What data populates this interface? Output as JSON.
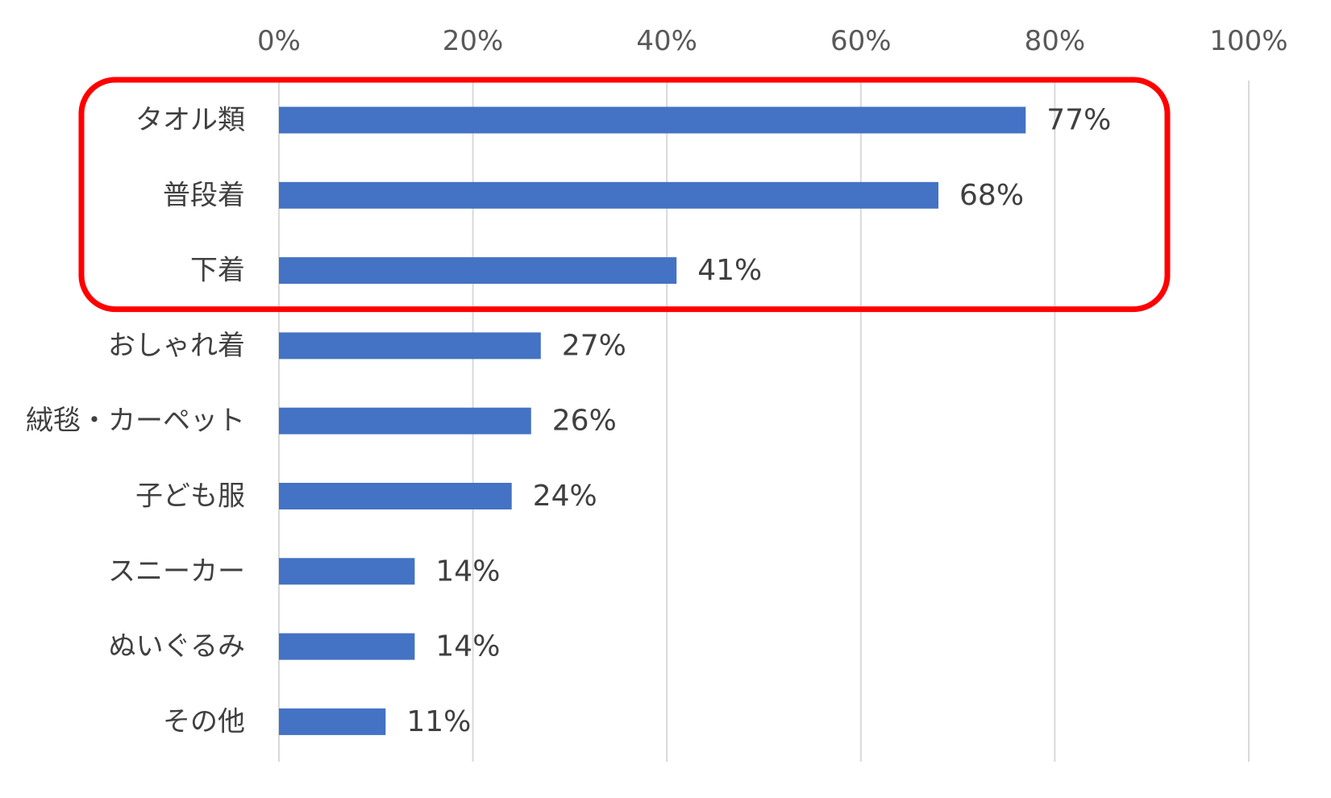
{
  "chart_data": {
    "type": "bar",
    "orientation": "horizontal",
    "categories": [
      "タオル類",
      "普段着",
      "下着",
      "おしゃれ着",
      "絨毯・カーペット",
      "子ども服",
      "スニーカー",
      "ぬいぐるみ",
      "その他"
    ],
    "values": [
      77,
      68,
      41,
      27,
      26,
      24,
      14,
      14,
      11
    ],
    "data_labels": [
      "77%",
      "68%",
      "41%",
      "27%",
      "26%",
      "24%",
      "14%",
      "14%",
      "11%"
    ],
    "x_ticks": [
      0,
      20,
      40,
      60,
      80,
      100
    ],
    "x_tick_labels": [
      "0%",
      "20%",
      "40%",
      "60%",
      "80%",
      "100%"
    ],
    "xlim": [
      0,
      100
    ],
    "x_axis_position": "top",
    "grid": true,
    "legend": "none",
    "title": "",
    "xlabel": "",
    "ylabel": "",
    "highlight": {
      "categories": [
        "タオル類",
        "普段着",
        "下着"
      ],
      "color": "#FF0000"
    },
    "colors": {
      "bar": "#4472C4",
      "grid": "#D9D9D9",
      "highlight": "#FF0000"
    }
  }
}
